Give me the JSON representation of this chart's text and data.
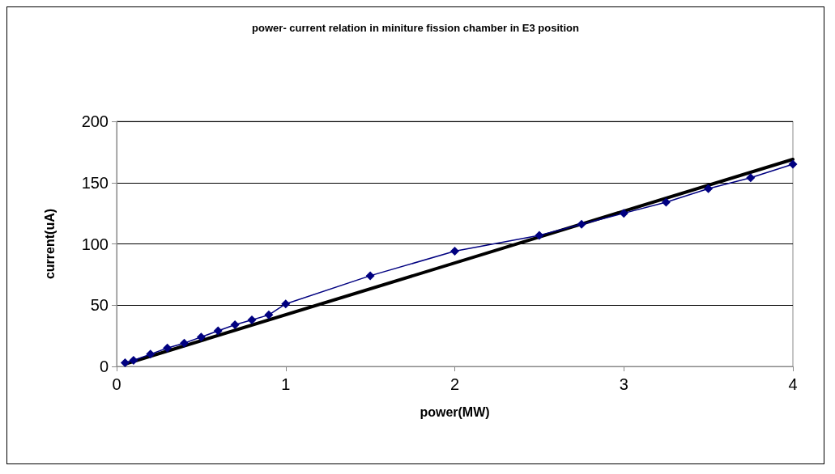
{
  "chart_data": {
    "type": "line",
    "title": "power- current relation in miniture fission chamber in E3 position",
    "xlabel": "power(MW)",
    "ylabel": "current(uA)",
    "xlim": [
      0,
      4
    ],
    "xticks": [
      0,
      1,
      2,
      3,
      4
    ],
    "ylim": [
      0,
      200
    ],
    "yticks": [
      0,
      50,
      100,
      150,
      200
    ],
    "grid": "y",
    "marker": "diamond",
    "series": [
      {
        "color": "#000080",
        "x": [
          0.05,
          0.1,
          0.2,
          0.3,
          0.4,
          0.5,
          0.6,
          0.7,
          0.8,
          0.9,
          1,
          1.5,
          2,
          2.5,
          2.75,
          3,
          3.25,
          3.5,
          3.75,
          4
        ],
        "values": [
          3,
          5,
          10,
          15,
          19,
          24,
          29,
          34,
          38,
          42,
          51,
          74,
          94,
          107,
          116,
          125,
          134,
          145,
          154,
          165
        ]
      },
      {
        "type": "line",
        "color": "#000000",
        "marker": "none",
        "x": [
          0.05,
          4
        ],
        "values": [
          2,
          169
        ]
      }
    ]
  }
}
